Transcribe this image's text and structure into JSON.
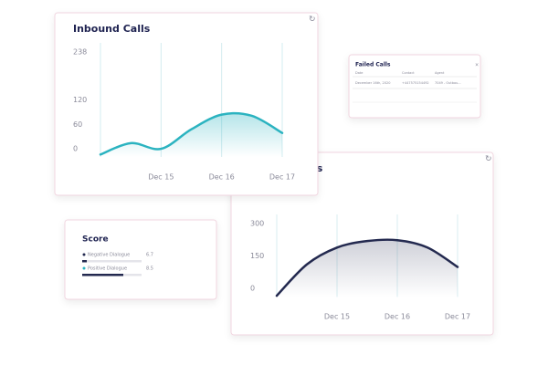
{
  "chart_data": [
    {
      "type": "line",
      "title": "Inbound Calls",
      "color": "#2bb3c0",
      "grid_color": "#d3ecf0",
      "categories": [
        null,
        null,
        "Dec 15",
        null,
        "Dec 16",
        null,
        "Dec 17"
      ],
      "values": [
        -14,
        14,
        0,
        48,
        84,
        81,
        39
      ],
      "ylim": [
        -20,
        238
      ],
      "yticks": [
        0,
        60,
        120,
        238
      ]
    },
    {
      "type": "line",
      "title": "ls",
      "color": "#23294f",
      "grid_color": "#d9eef2",
      "categories": [
        null,
        null,
        "Dec 15",
        null,
        "Dec 16",
        null,
        "Dec 17"
      ],
      "values": [
        -34,
        111,
        189,
        219,
        223,
        189,
        99
      ],
      "ylim": [
        -40,
        300
      ],
      "yticks": [
        0,
        150,
        300
      ]
    }
  ],
  "failed_calls": {
    "title": "Failed Calls",
    "columns": [
      "Date",
      "Contact",
      "Agent"
    ],
    "rows": [
      [
        "December 16th, 2020",
        "+447575154492",
        "7049 - Outbou..."
      ]
    ]
  },
  "score": {
    "title": "Score",
    "items": [
      {
        "label": "Negative Dialogue",
        "value": "6.7"
      },
      {
        "label": "Positive Dialogue",
        "value": "8.5"
      }
    ]
  }
}
